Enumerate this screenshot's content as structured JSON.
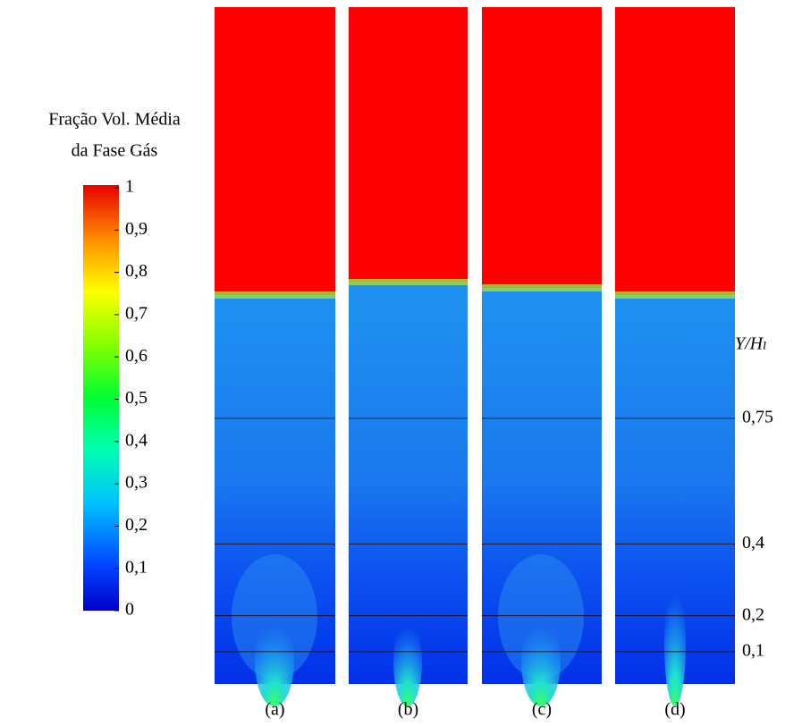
{
  "legend": {
    "title_lines": [
      "Fração Vol. Média",
      "da Fase Gás"
    ],
    "ticks": [
      {
        "value": 1,
        "label": "1"
      },
      {
        "value": 0.9,
        "label": "0,9"
      },
      {
        "value": 0.8,
        "label": "0,8"
      },
      {
        "value": 0.7,
        "label": "0,7"
      },
      {
        "value": 0.6,
        "label": "0,6"
      },
      {
        "value": 0.5,
        "label": "0,5"
      },
      {
        "value": 0.4,
        "label": "0,4"
      },
      {
        "value": 0.3,
        "label": "0,3"
      },
      {
        "value": 0.2,
        "label": "0,2"
      },
      {
        "value": 0.1,
        "label": "0,1"
      },
      {
        "value": 0,
        "label": "0"
      }
    ]
  },
  "height_axis": {
    "label": "Y/Hₗ",
    "levels": [
      {
        "value": 0.75,
        "label": "0,75"
      },
      {
        "value": 0.4,
        "label": "0,4"
      },
      {
        "value": 0.2,
        "label": "0,2"
      },
      {
        "value": 0.1,
        "label": "0,1"
      }
    ]
  },
  "panels": [
    "(a)",
    "(b)",
    "(c)",
    "(d)"
  ]
}
